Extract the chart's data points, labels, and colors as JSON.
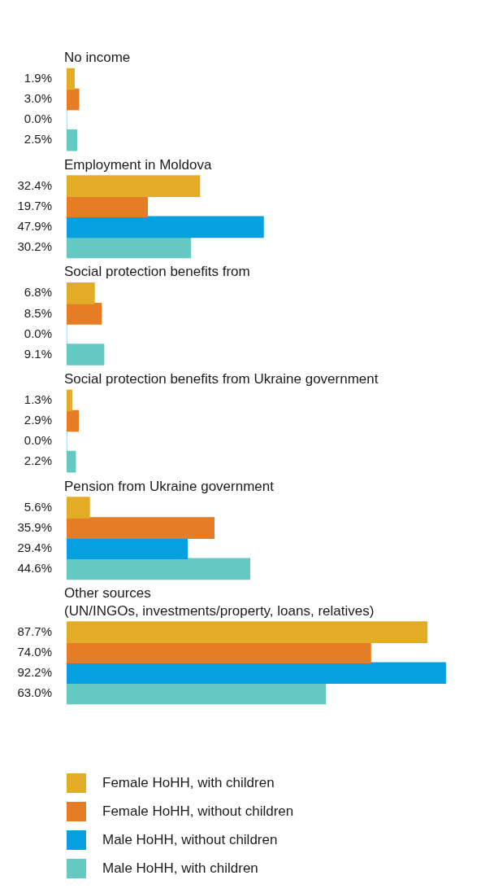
{
  "chart_data": {
    "type": "bar",
    "orientation": "horizontal",
    "categories": [
      "No income",
      "Employment in Moldova",
      "Social protection benefits from",
      "Social protection benefits from Ukraine government",
      "Pension from Ukraine government",
      "Other sources\n(UN/INGOs, investments/property, loans, relatives)"
    ],
    "series": [
      {
        "name": "Female HoHH, with children",
        "color": "#e3ac26",
        "values": [
          1.9,
          32.4,
          6.8,
          1.3,
          5.6,
          87.7
        ],
        "value_labels": [
          "1.9%",
          "32.4%",
          "6.8%",
          "1.3%",
          "5.6%",
          "87.7%"
        ]
      },
      {
        "name": "Female HoHH, without children",
        "color": "#e47d25",
        "values": [
          3.0,
          19.7,
          8.5,
          2.9,
          35.9,
          74.0
        ],
        "value_labels": [
          "3.0%",
          "19.7%",
          "8.5%",
          "2.9%",
          "35.9%",
          "74.0%"
        ]
      },
      {
        "name": "Male HoHH, without children",
        "color": "#069fdf",
        "values": [
          0.0,
          47.9,
          0.0,
          0.0,
          29.4,
          92.2
        ],
        "value_labels": [
          "0.0%",
          "47.9%",
          "0.0%",
          "0.0%",
          "29.4%",
          "92.2%"
        ]
      },
      {
        "name": "Male HoHH, with children",
        "color": "#65c8c3",
        "values": [
          2.5,
          30.2,
          9.1,
          2.2,
          44.6,
          63.0
        ],
        "value_labels": [
          "2.5%",
          "30.2%",
          "9.1%",
          "2.2%",
          "44.6%",
          "63.0%"
        ]
      }
    ],
    "tick_labels": false,
    "legend": "bottom"
  }
}
